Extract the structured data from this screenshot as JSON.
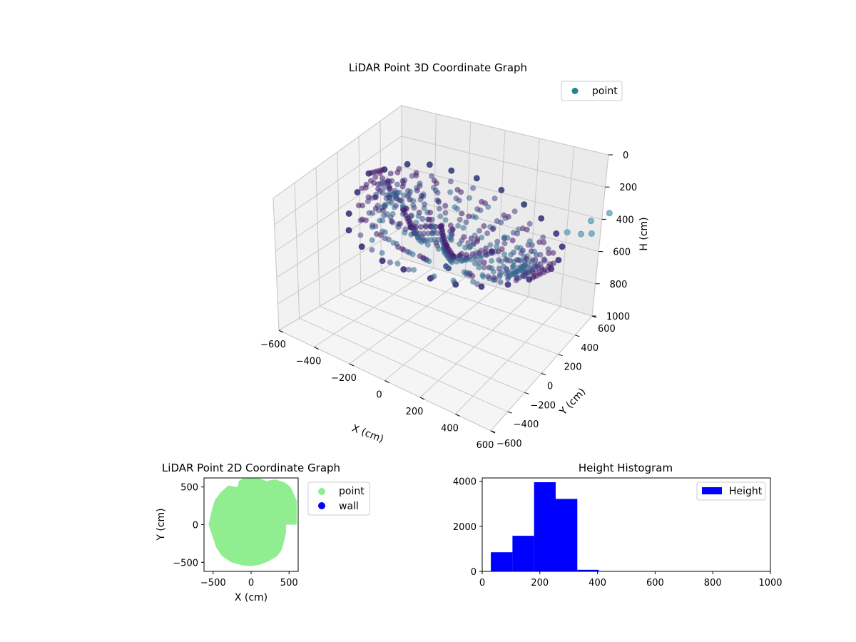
{
  "chart_data": [
    {
      "type": "scatter",
      "title": "LiDAR Point 3D Coordinate Graph",
      "xlabel": "X (cm)",
      "ylabel": "Y (cm)",
      "zlabel": "H (cm)",
      "xlim": [
        -600,
        600
      ],
      "ylim": [
        -600,
        600
      ],
      "zlim": [
        0,
        1000
      ],
      "z_inverted": true,
      "x_ticks": [
        "−600",
        "−400",
        "−200",
        "0",
        "200",
        "400",
        "600"
      ],
      "y_ticks": [
        "−600",
        "−400",
        "−200",
        "0",
        "200",
        "400",
        "600"
      ],
      "z_ticks": [
        "0",
        "200",
        "400",
        "600",
        "800",
        "1000"
      ],
      "legend": {
        "location": "top-right",
        "entries": [
          {
            "label": "point",
            "color": "#21868c"
          }
        ]
      },
      "colormap": "viridis",
      "grid": true,
      "series": [
        {
          "name": "point",
          "shape": "open bowl of points; rim at H≈200–300 cm, stray points near H≈0 at far corner",
          "points": [
            [
              -520,
              140,
              220
            ],
            [
              -500,
              260,
              230
            ],
            [
              -480,
              -40,
              250
            ],
            [
              -440,
              380,
              210
            ],
            [
              -400,
              -260,
              260
            ],
            [
              -360,
              460,
              200
            ],
            [
              -320,
              -400,
              270
            ],
            [
              -260,
              500,
              200
            ],
            [
              -200,
              -480,
              280
            ],
            [
              -140,
              540,
              200
            ],
            [
              -60,
              -520,
              280
            ],
            [
              0,
              540,
              200
            ],
            [
              60,
              -520,
              270
            ],
            [
              140,
              520,
              210
            ],
            [
              200,
              -500,
              260
            ],
            [
              260,
              480,
              220
            ],
            [
              320,
              -460,
              250
            ],
            [
              380,
              420,
              230
            ],
            [
              420,
              -380,
              240
            ],
            [
              460,
              340,
              240
            ],
            [
              500,
              -260,
              230
            ],
            [
              520,
              200,
              240
            ],
            [
              540,
              -120,
              230
            ],
            [
              560,
              60,
              220
            ],
            [
              -300,
              100,
              320
            ],
            [
              -200,
              0,
              340
            ],
            [
              -100,
              120,
              330
            ],
            [
              0,
              0,
              350
            ],
            [
              100,
              -100,
              330
            ],
            [
              200,
              100,
              320
            ],
            [
              580,
              420,
              120
            ],
            [
              600,
              560,
              30
            ],
            [
              600,
              380,
              10
            ],
            [
              590,
              300,
              70
            ],
            [
              570,
              200,
              30
            ]
          ]
        }
      ]
    },
    {
      "type": "scatter",
      "title": "LiDAR Point 2D Coordinate Graph",
      "xlabel": "X (cm)",
      "ylabel": "Y (cm)",
      "xlim": [
        -620,
        620
      ],
      "ylim": [
        -620,
        620
      ],
      "x_ticks": [
        -500,
        0,
        500
      ],
      "y_ticks": [
        -500,
        0,
        500
      ],
      "legend": {
        "location": "outside-right",
        "entries": [
          {
            "label": "point",
            "color": "#90ee90"
          },
          {
            "label": "wall",
            "color": "#0000ff"
          }
        ]
      },
      "series": [
        {
          "name": "point",
          "color": "#90ee90",
          "outline": [
            [
              -180,
              500
            ],
            [
              -300,
              520
            ],
            [
              -400,
              430
            ],
            [
              -480,
              320
            ],
            [
              -520,
              180
            ],
            [
              -560,
              0
            ],
            [
              -500,
              -180
            ],
            [
              -460,
              -300
            ],
            [
              -380,
              -420
            ],
            [
              -260,
              -500
            ],
            [
              -120,
              -540
            ],
            [
              0,
              -550
            ],
            [
              120,
              -530
            ],
            [
              240,
              -480
            ],
            [
              340,
              -420
            ],
            [
              400,
              -340
            ],
            [
              440,
              -200
            ],
            [
              460,
              -100
            ],
            [
              460,
              0
            ],
            [
              600,
              0
            ],
            [
              600,
              320
            ],
            [
              520,
              500
            ],
            [
              440,
              560
            ],
            [
              320,
              600
            ],
            [
              200,
              580
            ],
            [
              100,
              620
            ],
            [
              0,
              620
            ],
            [
              -100,
              620
            ],
            [
              -160,
              580
            ]
          ]
        },
        {
          "name": "wall",
          "color": "#0000ff",
          "points": []
        }
      ]
    },
    {
      "type": "bar",
      "title": "Height Histogram",
      "xlabel": "",
      "ylabel": "",
      "xlim": [
        0,
        1000
      ],
      "ylim": [
        0,
        4150
      ],
      "x_ticks": [
        0,
        200,
        400,
        600,
        800,
        1000
      ],
      "y_ticks": [
        0,
        2000,
        4000
      ],
      "legend": {
        "location": "top-right",
        "entries": [
          {
            "label": "Height",
            "color": "#0000ff"
          }
        ]
      },
      "bins": [
        {
          "x0": 30,
          "x1": 105,
          "count": 850
        },
        {
          "x0": 105,
          "x1": 180,
          "count": 1580
        },
        {
          "x0": 180,
          "x1": 255,
          "count": 3960
        },
        {
          "x0": 255,
          "x1": 330,
          "count": 3220
        },
        {
          "x0": 330,
          "x1": 405,
          "count": 70
        }
      ],
      "series": [
        {
          "name": "Height",
          "color": "#0000ff"
        }
      ]
    }
  ]
}
